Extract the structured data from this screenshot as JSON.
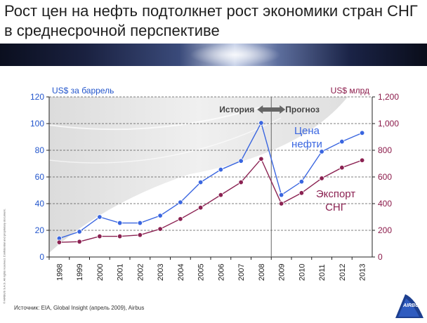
{
  "title": "Рост цен на нефть подтолкнет рост экономики стран СНГ в среднесрочной перспективе",
  "source": "Источник: EIA, Global Insight (апрель 2009), Airbus",
  "copyright": "© AIRBUS S.A.S. All rights reserved. Confidential and proprietary document.",
  "logo_text": "AIRBUS",
  "chart_data": {
    "type": "line",
    "categories": [
      "1998",
      "1999",
      "2000",
      "2001",
      "2002",
      "2003",
      "2004",
      "2005",
      "2006",
      "2007",
      "2008",
      "2009",
      "2010",
      "2011",
      "2012",
      "2013"
    ],
    "left_axis": {
      "label": "US$ за баррель",
      "ylim": [
        0,
        120
      ],
      "ticks": [
        "0",
        "20",
        "40",
        "60",
        "80",
        "100",
        "120"
      ],
      "color": "#2255cc"
    },
    "right_axis": {
      "label": "US$ млрд",
      "ylim": [
        0,
        1200
      ],
      "ticks": [
        "0",
        "200",
        "400",
        "600",
        "800",
        "1,000",
        "1,200"
      ],
      "color": "#8b1a4a"
    },
    "series": [
      {
        "name": "Цена нефти",
        "axis": "left",
        "color": "#3a66e0",
        "values": [
          14,
          19,
          30,
          25.5,
          25.5,
          31,
          41,
          56,
          65.5,
          72,
          100.5,
          46.5,
          56.5,
          79,
          86.5,
          93
        ]
      },
      {
        "name": "Экспорт СНГ",
        "axis": "right",
        "color": "#8b2252",
        "values": [
          110,
          115,
          155,
          155,
          165,
          210,
          285,
          370,
          465,
          560,
          735,
          400,
          480,
          590,
          670,
          725
        ]
      }
    ],
    "annotations": {
      "history": "История",
      "forecast": "Прогноз",
      "divider_after": "2008"
    },
    "grid": "dashed horizontal",
    "legend": "inline labels"
  }
}
